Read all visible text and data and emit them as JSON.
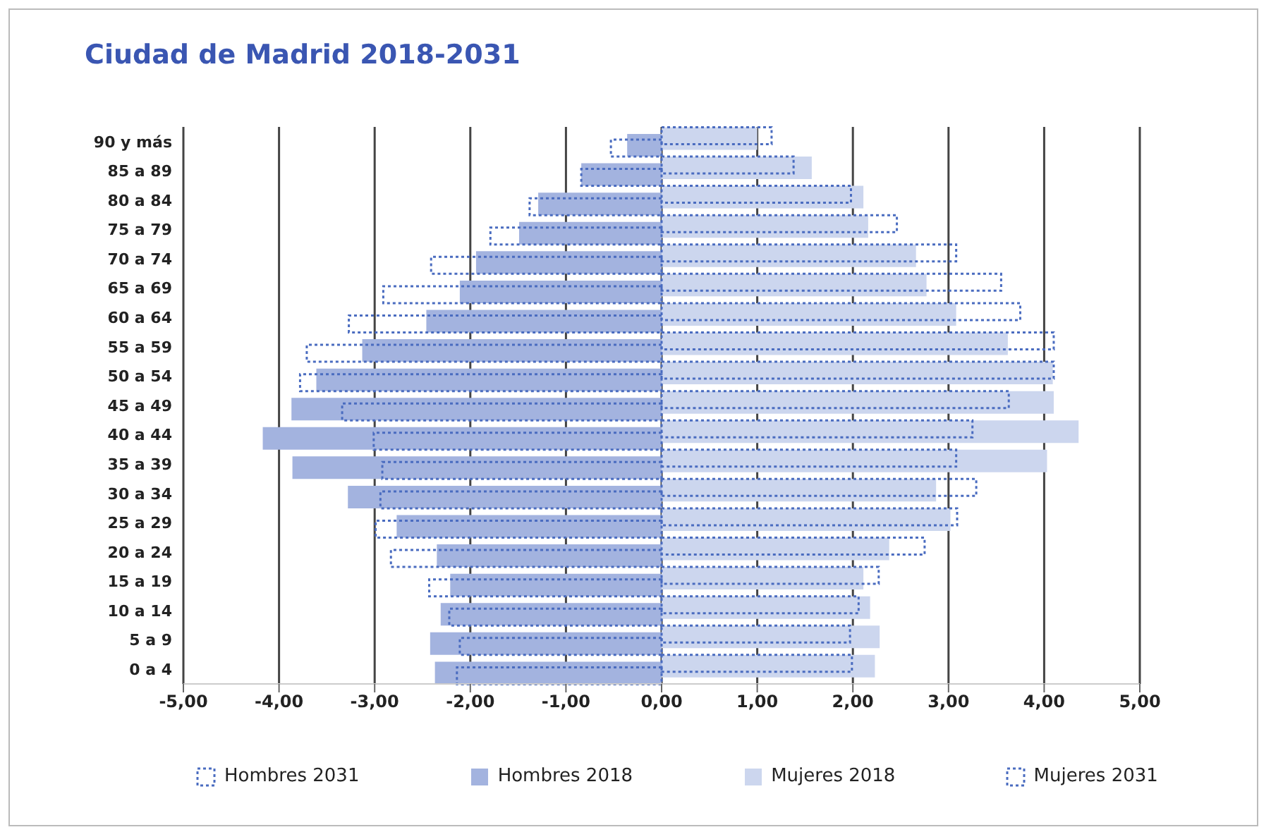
{
  "chart_data": {
    "type": "bar",
    "orientation": "horizontal",
    "title": "Ciudad de Madrid 2018-2031",
    "categories": [
      "90 y más",
      "85 a 89",
      "80 a 84",
      "75 a 79",
      "70 a 74",
      "65 a 69",
      "60 a 64",
      "55 a 59",
      "50 a 54",
      "45 a 49",
      "40 a 44",
      "35 a 39",
      "30 a 34",
      "25 a 29",
      "20 a 24",
      "15 a 19",
      "10 a 14",
      "5 a 9",
      "0 a 4"
    ],
    "series": [
      {
        "name": "Hombres 2031",
        "color": "#4a6cc0",
        "line_style": "dotted",
        "values": [
          -0.53,
          -0.84,
          -1.38,
          -1.79,
          -2.41,
          -2.91,
          -3.27,
          -3.71,
          -3.78,
          -3.34,
          -3.01,
          -2.92,
          -2.94,
          -2.99,
          -2.83,
          -2.43,
          -2.22,
          -2.11,
          -2.14
        ]
      },
      {
        "name": "Hombres 2018",
        "color": "#a3b3df",
        "values": [
          -0.36,
          -0.84,
          -1.29,
          -1.49,
          -1.94,
          -2.11,
          -2.46,
          -3.13,
          -3.61,
          -3.87,
          -4.17,
          -3.86,
          -3.28,
          -2.77,
          -2.35,
          -2.21,
          -2.31,
          -2.42,
          -2.37
        ]
      },
      {
        "name": "Mujeres 2018",
        "color": "#ccd6ee",
        "values": [
          1.0,
          1.57,
          2.11,
          2.16,
          2.66,
          2.77,
          3.08,
          3.62,
          4.09,
          4.1,
          4.36,
          4.03,
          2.87,
          3.02,
          2.38,
          2.11,
          2.18,
          2.28,
          2.23
        ]
      },
      {
        "name": "Mujeres 2031",
        "color": "#4a6cc0",
        "line_style": "dotted",
        "values": [
          1.15,
          1.38,
          1.98,
          2.46,
          3.08,
          3.55,
          3.75,
          4.1,
          4.1,
          3.63,
          3.25,
          3.08,
          3.29,
          3.09,
          2.75,
          2.27,
          2.06,
          1.97,
          1.99
        ]
      }
    ],
    "xlim": [
      -5,
      5
    ],
    "xticks": [
      {
        "value": -5,
        "label": "-5,00"
      },
      {
        "value": -4,
        "label": "-4,00"
      },
      {
        "value": -3,
        "label": "-3,00"
      },
      {
        "value": -2,
        "label": "-2,00"
      },
      {
        "value": -1,
        "label": "-1,00"
      },
      {
        "value": 0,
        "label": "0,00"
      },
      {
        "value": 1,
        "label": "1,00"
      },
      {
        "value": 2,
        "label": "2,00"
      },
      {
        "value": 3,
        "label": "3,00"
      },
      {
        "value": 4,
        "label": "4,00"
      },
      {
        "value": 5,
        "label": "5,00"
      }
    ],
    "grid": "x",
    "legend": "bottom"
  }
}
